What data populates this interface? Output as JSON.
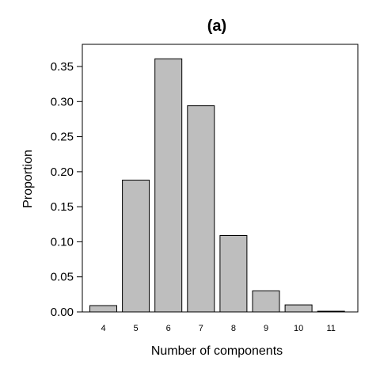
{
  "chart_data": {
    "type": "bar",
    "title": "(a)",
    "xlabel": "Number of components",
    "ylabel": "Proportion",
    "categories": [
      "4",
      "5",
      "6",
      "7",
      "8",
      "9",
      "10",
      "11"
    ],
    "values": [
      0.009,
      0.188,
      0.361,
      0.294,
      0.109,
      0.03,
      0.01,
      0.001
    ],
    "ylim": [
      0,
      0.36
    ],
    "yticks": [
      "0.00",
      "0.05",
      "0.10",
      "0.15",
      "0.20",
      "0.25",
      "0.30",
      "0.35"
    ],
    "bar_color": "#bebebe",
    "bar_edge_color": "#000000",
    "grid": false,
    "legend": "none"
  }
}
